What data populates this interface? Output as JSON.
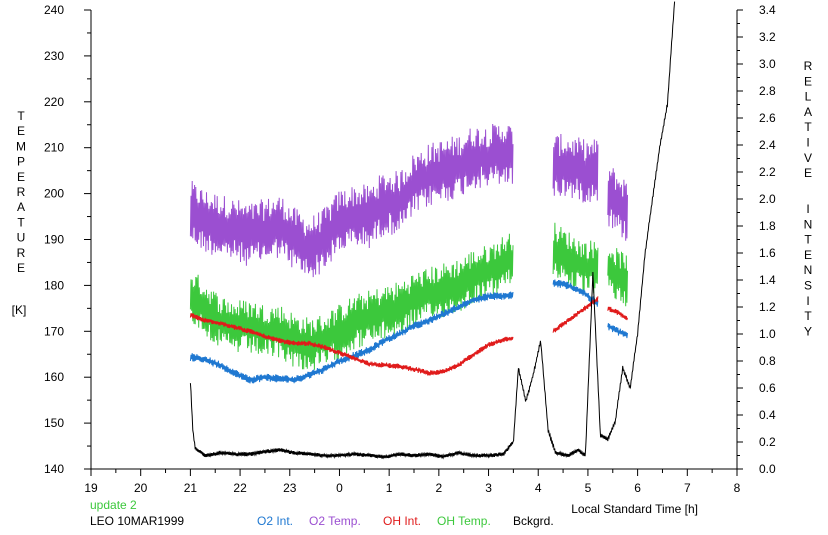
{
  "chart_data": {
    "type": "line",
    "left_axis": {
      "title_letters": [
        "T",
        "E",
        "M",
        "P",
        "E",
        "R",
        "A",
        "T",
        "U",
        "R",
        "E"
      ],
      "unit": "[K]",
      "ylim": [
        140,
        240
      ],
      "ticks": [
        "140",
        "150",
        "160",
        "170",
        "180",
        "190",
        "200",
        "210",
        "220",
        "230",
        "240"
      ]
    },
    "right_axis": {
      "title_word1": [
        "R",
        "E",
        "L",
        "A",
        "T",
        "I",
        "V",
        "E"
      ],
      "title_word2": [
        "I",
        "N",
        "T",
        "E",
        "N",
        "S",
        "I",
        "T",
        "Y"
      ],
      "ylim": [
        0.0,
        3.4
      ],
      "ticks": [
        "0.0",
        "0.2",
        "0.4",
        "0.6",
        "0.8",
        "1.0",
        "1.2",
        "1.4",
        "1.6",
        "1.8",
        "2.0",
        "2.2",
        "2.4",
        "2.6",
        "2.8",
        "3.0",
        "3.2",
        "3.4"
      ]
    },
    "x_axis": {
      "label": "Local Standard Time [h]",
      "ticks": [
        "19",
        "20",
        "21",
        "22",
        "23",
        "0",
        "1",
        "2",
        "3",
        "4",
        "5",
        "6",
        "7",
        "8"
      ],
      "xlim": [
        19,
        32
      ]
    },
    "footer": {
      "update": "update 2",
      "station": "LEO 10MAR1999"
    },
    "legend": [
      {
        "name": "O2 Int.",
        "color": "#1f78d1"
      },
      {
        "name": "O2 Temp.",
        "color": "#9b4fd1"
      },
      {
        "name": "OH Int.",
        "color": "#e01b1b"
      },
      {
        "name": "OH Temp.",
        "color": "#3cc83c"
      },
      {
        "name": "Bckgrd.",
        "color": "#000000"
      }
    ],
    "series": [
      {
        "name": "O2 Temp.",
        "axis": "left",
        "color": "#9b4fd1",
        "segments": [
          {
            "x": [
              21.0,
              21.3,
              21.6,
              21.9,
              22.2,
              22.5,
              22.8,
              23.1,
              23.4,
              23.7,
              24.0,
              24.3,
              24.6,
              24.9,
              25.2,
              25.5,
              25.8,
              26.1,
              26.4,
              26.7,
              27.0,
              27.3,
              27.5
            ],
            "y": [
              196,
              194,
              193,
              192,
              191,
              192,
              193,
              190,
              188,
              190,
              194,
              195,
              195,
              198,
              198,
              202,
              204,
              205,
              206,
              208,
              208,
              209,
              208
            ]
          },
          {
            "x": [
              28.3,
              28.6,
              28.9,
              29.2
            ],
            "y": [
              206,
              206,
              205,
              205
            ]
          },
          {
            "x": [
              29.4,
              29.6,
              29.8
            ],
            "y": [
              200,
              198,
              196
            ]
          }
        ],
        "amplitude": 7
      },
      {
        "name": "OH Temp.",
        "axis": "left",
        "color": "#3cc83c",
        "segments": [
          {
            "x": [
              21.0,
              21.3,
              21.6,
              21.9,
              22.2,
              22.5,
              22.8,
              23.1,
              23.4,
              23.7,
              24.0,
              24.3,
              24.6,
              24.9,
              25.2,
              25.5,
              25.8,
              26.1,
              26.4,
              26.7,
              27.0,
              27.3,
              27.5
            ],
            "y": [
              178,
              175,
              172,
              171,
              171,
              170,
              170,
              168,
              167,
              168,
              170,
              172,
              173,
              174,
              175,
              177,
              178,
              179,
              180,
              182,
              183,
              185,
              186
            ]
          },
          {
            "x": [
              28.3,
              28.6,
              28.9,
              29.2
            ],
            "y": [
              188,
              186,
              184,
              184
            ]
          },
          {
            "x": [
              29.4,
              29.6,
              29.8
            ],
            "y": [
              184,
              182,
              181
            ]
          }
        ],
        "amplitude": 6
      },
      {
        "name": "O2 Int.",
        "axis": "right",
        "color": "#1f78d1",
        "segments": [
          {
            "x": [
              21.0,
              21.3,
              21.6,
              21.9,
              22.2,
              22.5,
              22.8,
              23.1,
              23.4,
              23.7,
              24.0,
              24.3,
              24.6,
              24.9,
              25.2,
              25.5,
              25.8,
              26.1,
              26.4,
              26.7,
              27.0,
              27.3,
              27.5
            ],
            "y": [
              0.83,
              0.81,
              0.77,
              0.71,
              0.66,
              0.68,
              0.67,
              0.66,
              0.7,
              0.74,
              0.8,
              0.84,
              0.88,
              0.95,
              1.0,
              1.06,
              1.1,
              1.15,
              1.2,
              1.25,
              1.28,
              1.28,
              1.29
            ]
          },
          {
            "x": [
              28.3,
              28.6,
              28.9,
              29.2
            ],
            "y": [
              1.38,
              1.36,
              1.31,
              1.22
            ]
          },
          {
            "x": [
              29.4,
              29.6,
              29.8
            ],
            "y": [
              1.06,
              1.02,
              0.99
            ]
          }
        ],
        "amplitude": 0.03
      },
      {
        "name": "OH Int.",
        "axis": "right",
        "color": "#e01b1b",
        "segments": [
          {
            "x": [
              21.0,
              21.3,
              21.6,
              21.9,
              22.2,
              22.5,
              22.8,
              23.1,
              23.4,
              23.7,
              24.0,
              24.3,
              24.6,
              24.9,
              25.2,
              25.5,
              25.8,
              26.1,
              26.4,
              26.7,
              27.0,
              27.3,
              27.5
            ],
            "y": [
              1.14,
              1.1,
              1.08,
              1.05,
              1.02,
              0.98,
              0.95,
              0.93,
              0.93,
              0.9,
              0.86,
              0.82,
              0.78,
              0.77,
              0.76,
              0.74,
              0.71,
              0.72,
              0.77,
              0.85,
              0.92,
              0.96,
              0.97
            ]
          },
          {
            "x": [
              28.3,
              28.6,
              28.9,
              29.2
            ],
            "y": [
              1.02,
              1.1,
              1.18,
              1.26
            ]
          },
          {
            "x": [
              29.4,
              29.6,
              29.8
            ],
            "y": [
              1.19,
              1.16,
              1.11
            ]
          }
        ],
        "amplitude": 0.02
      },
      {
        "name": "Bckgrd.",
        "axis": "right",
        "color": "#000000",
        "segments": [
          {
            "x": [
              21.0,
              21.05,
              21.1,
              21.3,
              21.6,
              21.9,
              22.2,
              22.5,
              22.8,
              23.1,
              23.4,
              23.7,
              24.0,
              24.3,
              24.6,
              24.9,
              25.2,
              25.5,
              25.8,
              26.1,
              26.4,
              26.7,
              27.0,
              27.3,
              27.5,
              27.6,
              27.75,
              27.9,
              28.05,
              28.2,
              28.35,
              28.6,
              28.8,
              28.95,
              29.0,
              29.1,
              29.25,
              29.4,
              29.55,
              29.7,
              29.85,
              30.0,
              30.15,
              30.3,
              30.45,
              30.6,
              30.75
            ],
            "y": [
              0.65,
              0.28,
              0.15,
              0.1,
              0.12,
              0.11,
              0.11,
              0.13,
              0.14,
              0.12,
              0.11,
              0.1,
              0.1,
              0.11,
              0.1,
              0.09,
              0.11,
              0.1,
              0.11,
              0.09,
              0.12,
              0.1,
              0.1,
              0.11,
              0.2,
              0.75,
              0.5,
              0.7,
              0.95,
              0.28,
              0.12,
              0.1,
              0.14,
              0.1,
              0.55,
              1.45,
              0.25,
              0.22,
              0.35,
              0.75,
              0.6,
              1.0,
              1.6,
              2.0,
              2.4,
              2.7,
              3.5
            ]
          }
        ],
        "amplitude": 0.015
      }
    ]
  }
}
